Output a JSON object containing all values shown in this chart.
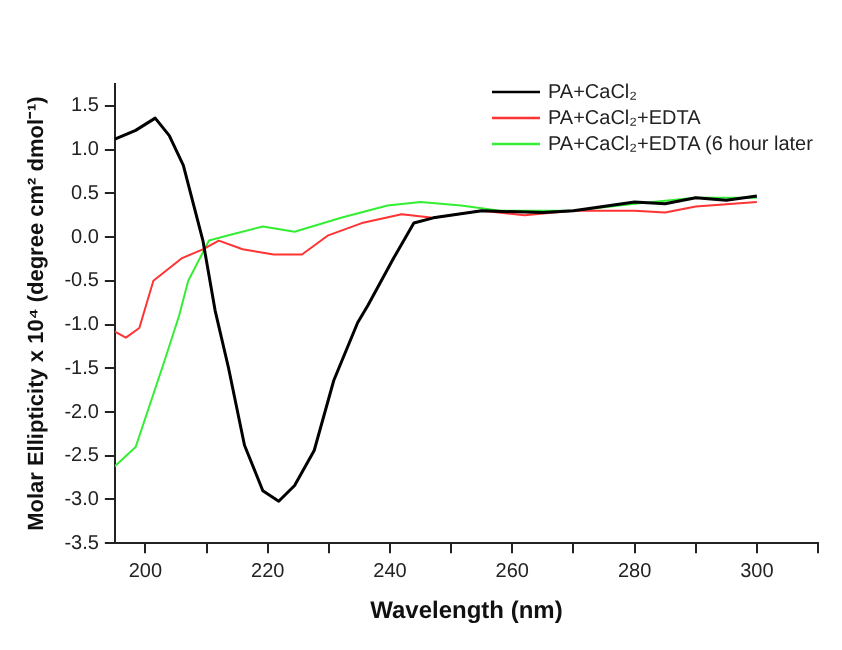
{
  "chart_data": {
    "type": "line",
    "xlabel": "Wavelength (nm)",
    "ylabel": "Molar Ellipticity x 10⁴ (degree cm² dmol⁻¹)",
    "xlim": [
      195,
      310
    ],
    "xticks": [
      200,
      {
        "value": 210,
        "label": null
      },
      220,
      {
        "value": 230,
        "label": null
      },
      240,
      {
        "value": 250,
        "label": null
      },
      260,
      {
        "value": 270,
        "label": null
      },
      280,
      {
        "value": 290,
        "label": null
      },
      300,
      {
        "value": 310,
        "label": null
      }
    ],
    "ylim": [
      -3.5,
      1.75
    ],
    "yticks": [
      -3.5,
      {
        "value": -3,
        "label": "-3.0"
      },
      -2.5,
      {
        "value": -2,
        "label": "-2.0"
      },
      -1.5,
      {
        "value": -1,
        "label": "-1.0"
      },
      -0.5,
      {
        "value": 0,
        "label": "0.0"
      },
      0.5,
      {
        "value": 1,
        "label": "1.0"
      },
      1.5
    ],
    "grid": false,
    "legend": "top right",
    "marker": "none",
    "line_style": "solid",
    "series": [
      {
        "name": "PA+CaCl₂",
        "color": "#000000",
        "x": [
          195,
          198.4,
          201.6,
          203.9,
          206.2,
          209.4,
          211.4,
          213.6,
          216.2,
          219.2,
          221.8,
          224.4,
          227.6,
          230.8,
          234.7,
          236.4,
          240.6,
          243.9,
          247.1,
          255,
          265,
          270,
          280,
          285,
          290,
          295,
          300
        ],
        "values": [
          1.12,
          1.22,
          1.36,
          1.16,
          0.82,
          -0.04,
          -0.84,
          -1.5,
          -2.38,
          -2.9,
          -3.02,
          -2.84,
          -2.44,
          -1.64,
          -0.98,
          -0.78,
          -0.24,
          0.16,
          0.22,
          0.3,
          0.28,
          0.3,
          0.4,
          0.38,
          0.45,
          0.42,
          0.47
        ]
      },
      {
        "name": "PA+CaCl₂+EDTA",
        "color": "#ff3333",
        "x": [
          195,
          196.8,
          199,
          201.3,
          206,
          209.4,
          212,
          215.9,
          221,
          225.6,
          229.9,
          235.4,
          241.9,
          247,
          255,
          262,
          270,
          280,
          285,
          290,
          300
        ],
        "values": [
          -1.08,
          -1.15,
          -1.04,
          -0.5,
          -0.24,
          -0.14,
          -0.04,
          -0.14,
          -0.2,
          -0.2,
          0.02,
          0.16,
          0.26,
          0.22,
          0.3,
          0.25,
          0.3,
          0.3,
          0.28,
          0.35,
          0.4
        ]
      },
      {
        "name": "PA+CaCl₂+EDTA (6 hour later",
        "color": "#33ee33",
        "x": [
          195,
          198.4,
          203,
          205.5,
          207,
          210.4,
          213.6,
          219.2,
          224.4,
          232,
          239.6,
          245,
          251.6,
          258,
          270,
          280,
          290,
          300
        ],
        "values": [
          -2.62,
          -2.4,
          -1.44,
          -0.9,
          -0.5,
          -0.04,
          0.02,
          0.12,
          0.06,
          0.22,
          0.36,
          0.4,
          0.36,
          0.3,
          0.3,
          0.38,
          0.45,
          0.45
        ]
      }
    ]
  }
}
